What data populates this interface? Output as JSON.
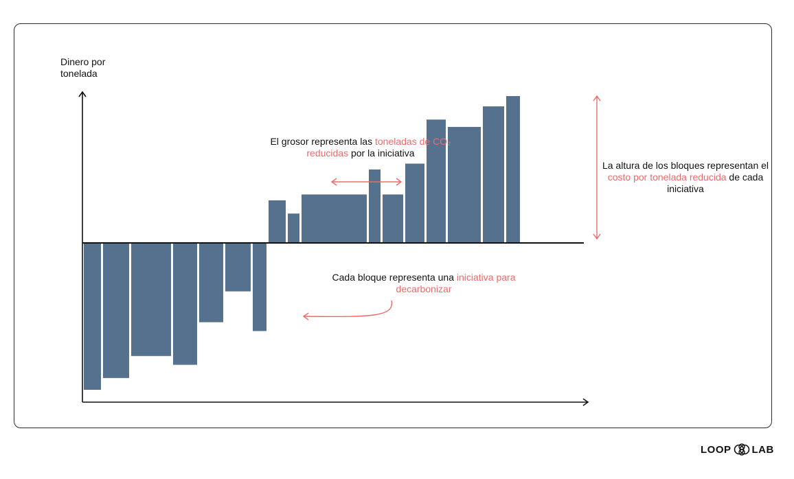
{
  "colors": {
    "bar": "#56718e",
    "accent": "#ee6a6a",
    "axis": "#111111"
  },
  "texts": {
    "y_title": "Dinero por tonelada",
    "note_thickness_pre": "El grosor representa las ",
    "note_thickness_hl": "toneladas de CO₂ reducidas",
    "note_thickness_post": " por la iniciativa",
    "note_height_pre": "La altura de los bloques representan el ",
    "note_height_hl": "costo por tonelada reducida",
    "note_height_post": " de cada iniciativa",
    "note_block_pre": "Cada bloque representa una ",
    "note_block_hl": "iniciativa para decarbonizar",
    "logo_left": "LOOP",
    "logo_right": "LAB"
  },
  "chart_data": {
    "type": "bar",
    "variant": "marginal abatement cost curve (variable-width bars)",
    "ylabel": "Dinero por tonelada",
    "xlabel": "",
    "axis_ticks": false,
    "grid": false,
    "ylim": [
      -10,
      10
    ],
    "bars": [
      {
        "width": 25,
        "value": -10.0
      },
      {
        "width": 38,
        "value": -9.2
      },
      {
        "width": 58,
        "value": -7.7
      },
      {
        "width": 35,
        "value": -8.3
      },
      {
        "width": 35,
        "value": -5.4
      },
      {
        "width": 37,
        "value": -3.3
      },
      {
        "width": 20,
        "value": -6.0
      },
      {
        "width": 25,
        "value": 2.9
      },
      {
        "width": 17,
        "value": 2.0
      },
      {
        "width": 95,
        "value": 3.3
      },
      {
        "width": 17,
        "value": 5.0
      },
      {
        "width": 30,
        "value": 3.3
      },
      {
        "width": 28,
        "value": 5.4
      },
      {
        "width": 28,
        "value": 8.4
      },
      {
        "width": 48,
        "value": 7.9
      },
      {
        "width": 31,
        "value": 9.3
      },
      {
        "width": 20,
        "value": 10.0
      }
    ]
  }
}
